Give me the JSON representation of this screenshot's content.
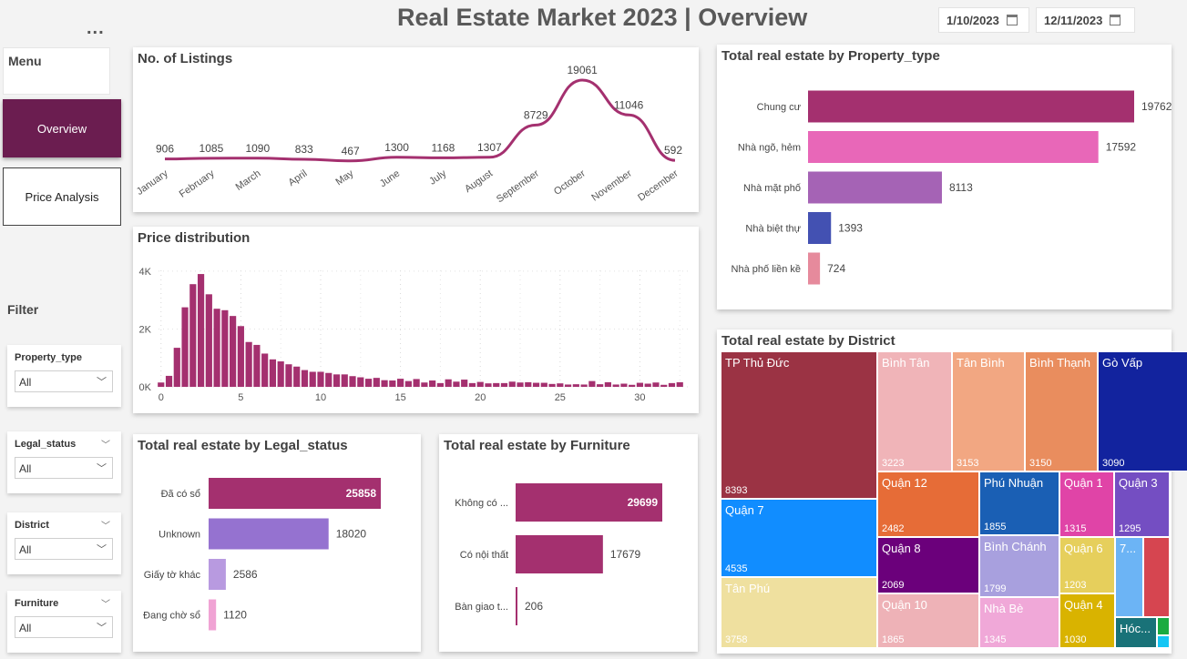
{
  "header": {
    "title": "Real Estate Market 2023 | Overview",
    "date_start": "1/10/2023",
    "date_end": "12/11/2023"
  },
  "menu": {
    "dots": "...",
    "label": "Menu",
    "items": [
      {
        "label": "Overview",
        "active": true
      },
      {
        "label": "Price Analysis",
        "active": false
      }
    ]
  },
  "filter": {
    "label": "Filter",
    "slicers": [
      {
        "label": "Property_type",
        "value": "All"
      },
      {
        "label": "Legal_status",
        "value": "All"
      },
      {
        "label": "District",
        "value": "All"
      },
      {
        "label": "Furniture",
        "value": "All"
      }
    ]
  },
  "charts": {
    "listings": {
      "title": "No. of Listings",
      "chart_data": {
        "type": "line",
        "categories": [
          "January",
          "February",
          "March",
          "April",
          "May",
          "June",
          "July",
          "August",
          "September",
          "October",
          "November",
          "December"
        ],
        "values": [
          906,
          1085,
          1090,
          833,
          467,
          1300,
          1168,
          1307,
          8729,
          19061,
          11046,
          592
        ],
        "color": "#a4306f"
      }
    },
    "price_dist": {
      "title": "Price distribution",
      "chart_data": {
        "type": "bar",
        "x_ticks": [
          0,
          5,
          10,
          15,
          20,
          25,
          30
        ],
        "y_ticks": [
          "0K",
          "2K",
          "4K"
        ],
        "ylim": [
          0,
          4500
        ],
        "xlim": [
          -0.5,
          33
        ],
        "bin_width": 0.5,
        "bin_start": 0,
        "values": [
          150,
          380,
          1350,
          2750,
          3550,
          3900,
          3200,
          2700,
          2650,
          2450,
          2100,
          1550,
          1450,
          1150,
          950,
          880,
          780,
          700,
          580,
          520,
          520,
          480,
          430,
          430,
          370,
          330,
          280,
          310,
          230,
          220,
          280,
          200,
          270,
          150,
          220,
          130,
          260,
          180,
          250,
          130,
          170,
          120,
          130,
          130,
          180,
          150,
          160,
          140,
          140,
          100,
          120,
          80,
          90,
          80,
          200,
          90,
          160,
          80,
          110,
          70,
          140,
          110,
          150,
          70,
          130,
          160
        ],
        "color": "#a4306f"
      }
    },
    "property_type": {
      "title": "Total real estate by Property_type",
      "chart_data": {
        "type": "bar",
        "orientation": "horizontal",
        "categories": [
          "Chung cư",
          "Nhà ngõ, hẻm",
          "Nhà mặt phố",
          "Nhà biệt thự",
          "Nhà phố liền kề"
        ],
        "values": [
          19762,
          17592,
          8113,
          1393,
          724
        ],
        "colors": [
          "#a4306f",
          "#e867b8",
          "#a563b5",
          "#4351b2",
          "#e68a9c"
        ]
      }
    },
    "legal_status": {
      "title": "Total real estate by Legal_status",
      "chart_data": {
        "type": "bar",
        "orientation": "horizontal",
        "categories": [
          "Đã có sổ",
          "Unknown",
          "Giấy tờ khác",
          "Đang chờ sổ"
        ],
        "values": [
          25858,
          18020,
          2586,
          1120
        ],
        "colors": [
          "#a4306f",
          "#9572d0",
          "#b89ae0",
          "#f0a3d4"
        ]
      }
    },
    "furniture": {
      "title": "Total real estate by Furniture",
      "chart_data": {
        "type": "bar",
        "orientation": "horizontal",
        "categories": [
          "Không có ...",
          "Có nội thất",
          "Bàn giao t..."
        ],
        "values": [
          29699,
          17679,
          206
        ],
        "colors": [
          "#a4306f",
          "#a4306f",
          "#a4306f"
        ]
      }
    },
    "district": {
      "title": "Total real estate by District",
      "chart_data": {
        "type": "treemap",
        "cells": [
          {
            "name": "TP Thủ Đức",
            "value": 8393,
            "color": "#9b3344",
            "text": "#ffffff"
          },
          {
            "name": "Quận 7",
            "value": 4535,
            "color": "#118dff",
            "text": "#ffffff"
          },
          {
            "name": "Tân Phú",
            "value": 3758,
            "color": "#efe09f",
            "text": "#ffffff"
          },
          {
            "name": "Bình Tân",
            "value": 3223,
            "color": "#f0b4b8",
            "text": "#ffffff"
          },
          {
            "name": "Tân Bình",
            "value": 3153,
            "color": "#f2a782",
            "text": "#ffffff"
          },
          {
            "name": "Bình Thạnh",
            "value": 3150,
            "color": "#e98d5e",
            "text": "#ffffff"
          },
          {
            "name": "Gò Vấp",
            "value": 3090,
            "color": "#12239e",
            "text": "#ffffff"
          },
          {
            "name": "Quận 12",
            "value": 2482,
            "color": "#e66c37",
            "text": "#ffffff"
          },
          {
            "name": "Quận 8",
            "value": 2069,
            "color": "#6b007b",
            "text": "#ffffff"
          },
          {
            "name": "Quận 10",
            "value": 1865,
            "color": "#eeb2b7",
            "text": "#ffffff"
          },
          {
            "name": "Phú Nhuận",
            "value": 1855,
            "color": "#1a5fb4",
            "text": "#ffffff"
          },
          {
            "name": "Bình Chánh",
            "value": 1799,
            "color": "#a8a0de",
            "text": "#ffffff"
          },
          {
            "name": "Nhà Bè",
            "value": 1345,
            "color": "#f0a8d8",
            "text": "#ffffff"
          },
          {
            "name": "Quận 1",
            "value": 1315,
            "color": "#e044a7",
            "text": "#ffffff"
          },
          {
            "name": "Quận 3",
            "value": 1295,
            "color": "#744ec2",
            "text": "#ffffff"
          },
          {
            "name": "Quận 6",
            "value": 1203,
            "color": "#e6cf5c",
            "text": "#ffffff"
          },
          {
            "name": "Quận 4",
            "value": 1030,
            "color": "#d9b300",
            "text": "#ffffff"
          },
          {
            "name": "7...",
            "value": null,
            "color": "#6cb4f5",
            "text": "#ffffff"
          },
          {
            "name": "",
            "value": null,
            "color": "#d64550",
            "text": "#ffffff"
          },
          {
            "name": "Hóc...",
            "value": null,
            "color": "#197278",
            "text": "#ffffff"
          },
          {
            "name": "",
            "value": null,
            "color": "#1aab40",
            "text": "#ffffff"
          },
          {
            "name": "",
            "value": null,
            "color": "#15c6f4",
            "text": "#ffffff"
          }
        ]
      }
    }
  }
}
